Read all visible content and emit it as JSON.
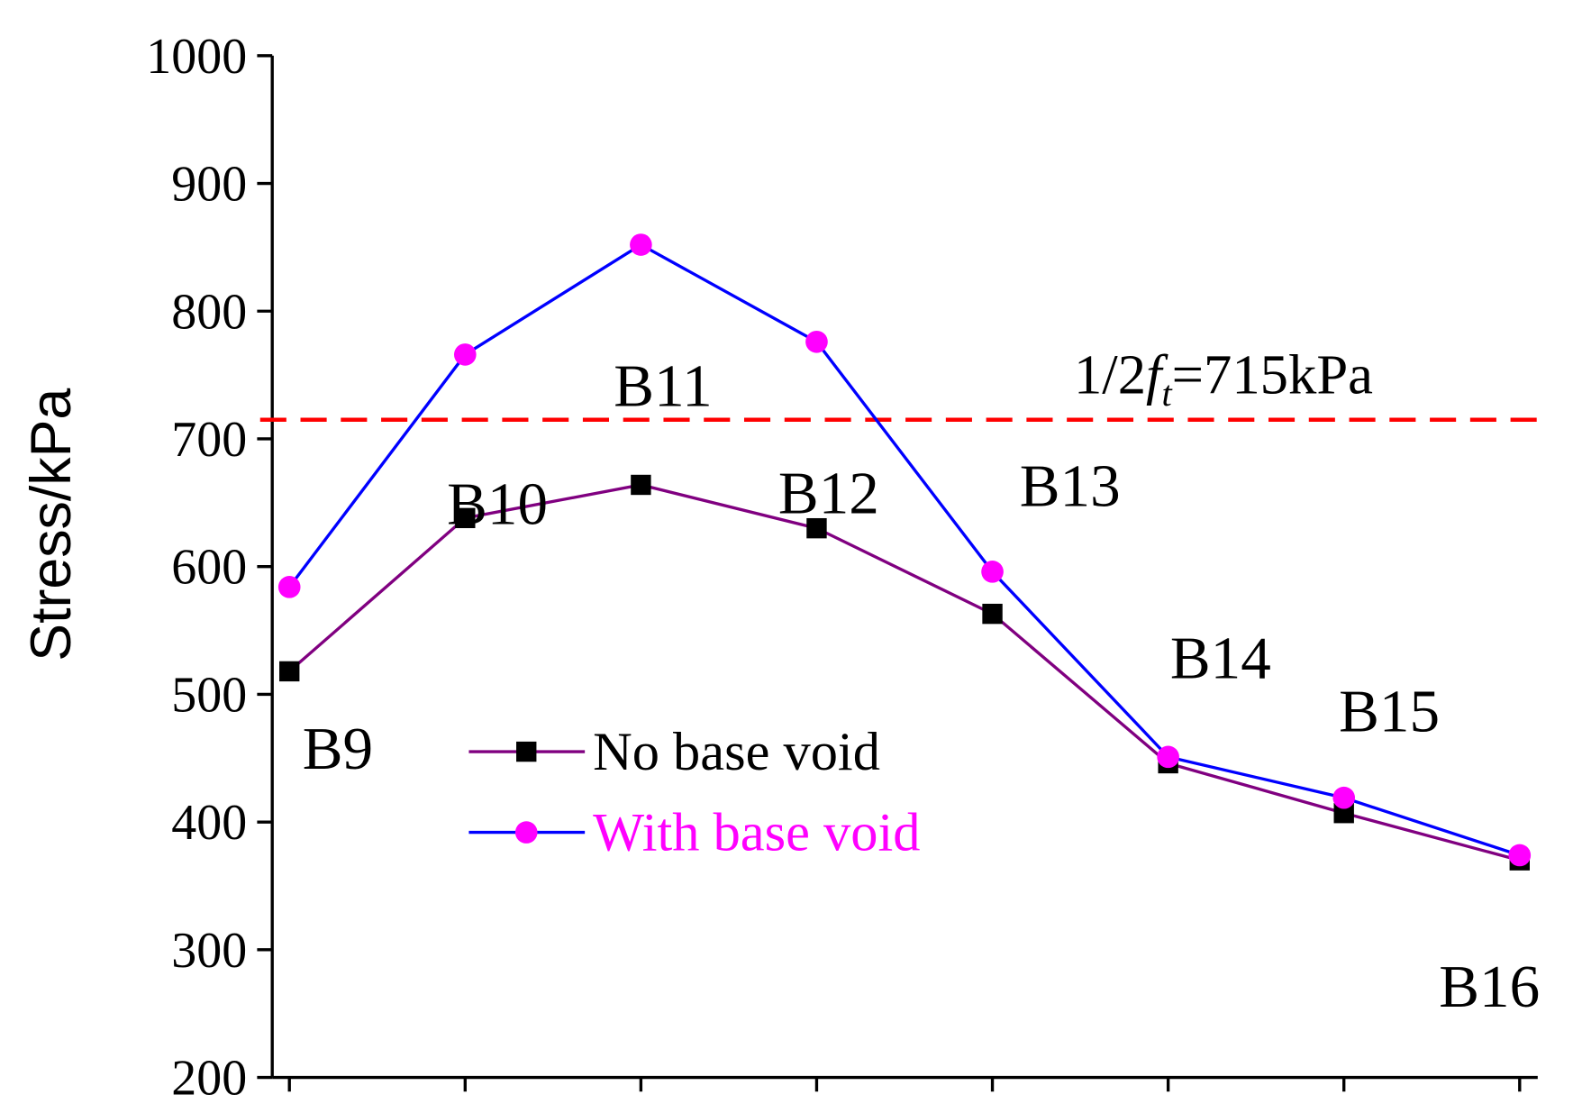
{
  "chart_data": {
    "type": "line",
    "y_label": "Stress/kPa",
    "categories": [
      "B9",
      "B10",
      "B11",
      "B12",
      "B13",
      "B14",
      "B15",
      "B16"
    ],
    "series": [
      {
        "name": "No base void",
        "color": "#800080",
        "marker": "square",
        "marker_color": "#000000",
        "text_color": "#000000",
        "values": [
          518,
          638,
          664,
          630,
          563,
          446,
          407,
          370
        ]
      },
      {
        "name": "With base void",
        "color": "#0000ff",
        "marker": "circle",
        "marker_color": "#ff00ff",
        "text_color": "#ff00ff",
        "values": [
          584,
          766,
          852,
          776,
          596,
          451,
          419,
          374
        ]
      }
    ],
    "ylim": [
      200,
      1000
    ],
    "yticks": [
      200,
      300,
      400,
      500,
      600,
      700,
      800,
      900,
      1000
    ],
    "reference_line": {
      "value": 715,
      "color": "#ff0000",
      "label_prefix": "1/2",
      "label_symbol": "f",
      "label_subscript": "t",
      "label_suffix": "=715kPa"
    }
  }
}
